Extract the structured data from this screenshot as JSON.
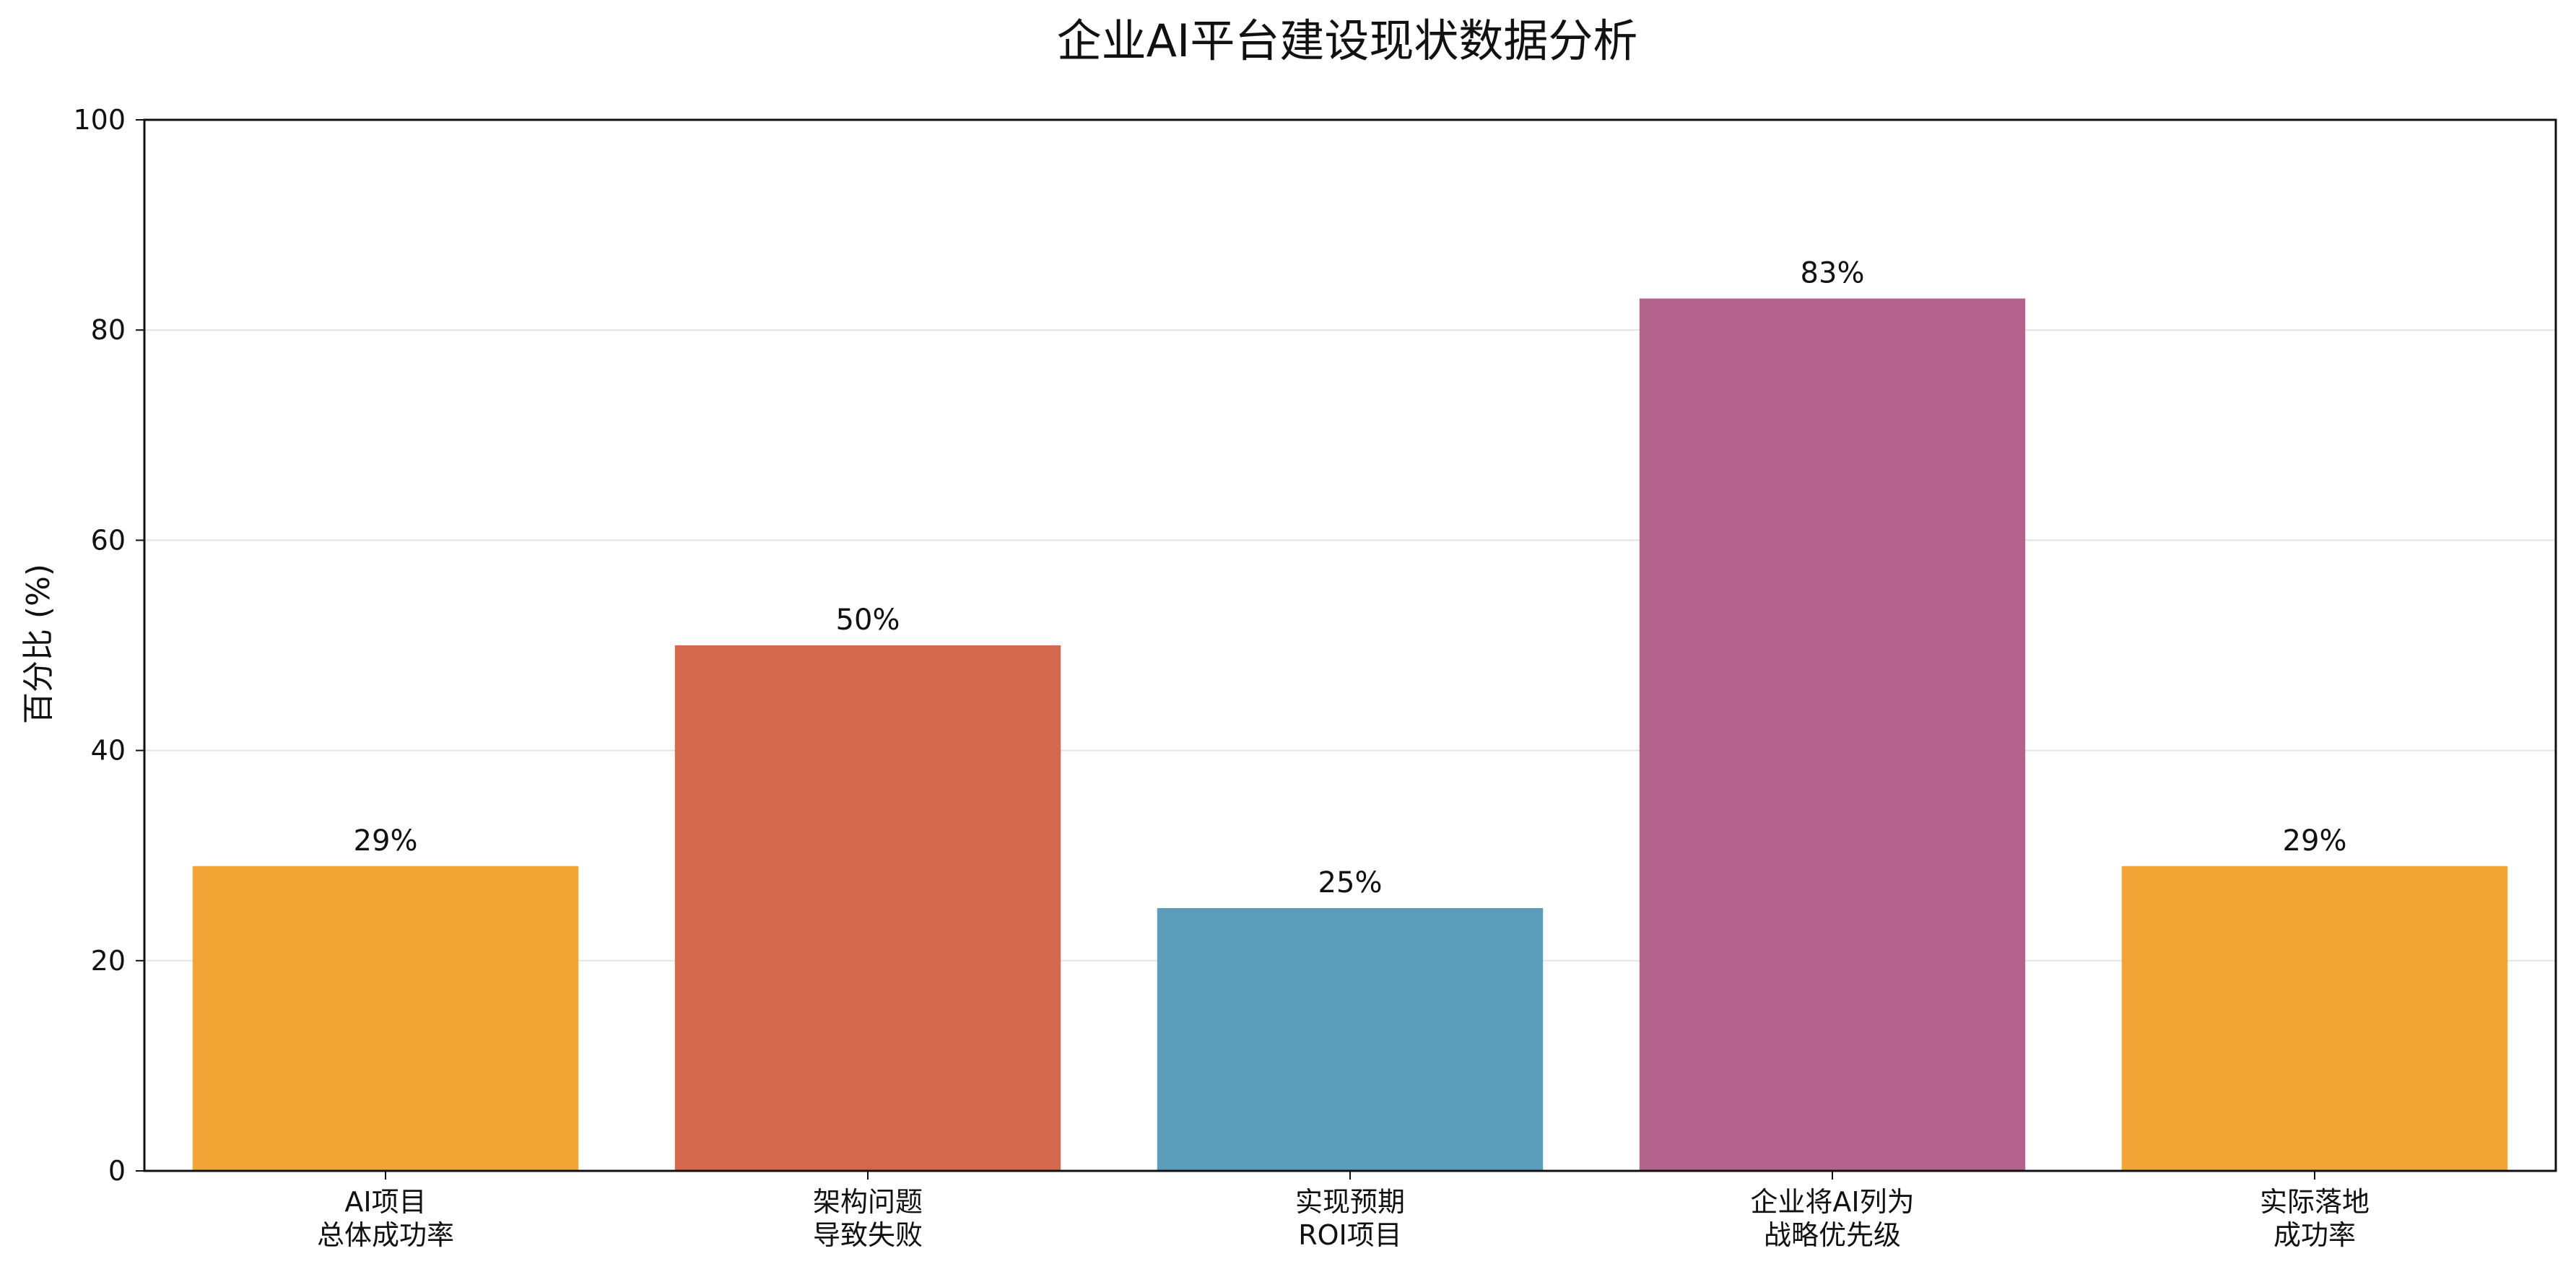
{
  "chart_data": {
    "type": "bar",
    "title": "企业AI平台建设现状数据分析",
    "xlabel": "",
    "ylabel": "百分比 (%)",
    "ylim": [
      0,
      100
    ],
    "yticks": [
      0,
      20,
      40,
      60,
      80,
      100
    ],
    "grid": "horizontal",
    "categories": [
      [
        "AI项目",
        "总体成功率"
      ],
      [
        "架构问题",
        "导致失败"
      ],
      [
        "实现预期",
        "ROI项目"
      ],
      [
        "企业将AI列为",
        "战略优先级"
      ],
      [
        "实际落地",
        "成功率"
      ]
    ],
    "values": [
      29,
      50,
      25,
      83,
      29
    ],
    "data_labels": [
      "29%",
      "50%",
      "25%",
      "83%",
      "29%"
    ],
    "colors": [
      "#F2A535",
      "#D4684C",
      "#5A9EBC",
      "#B4648C",
      "#F2A535"
    ]
  }
}
